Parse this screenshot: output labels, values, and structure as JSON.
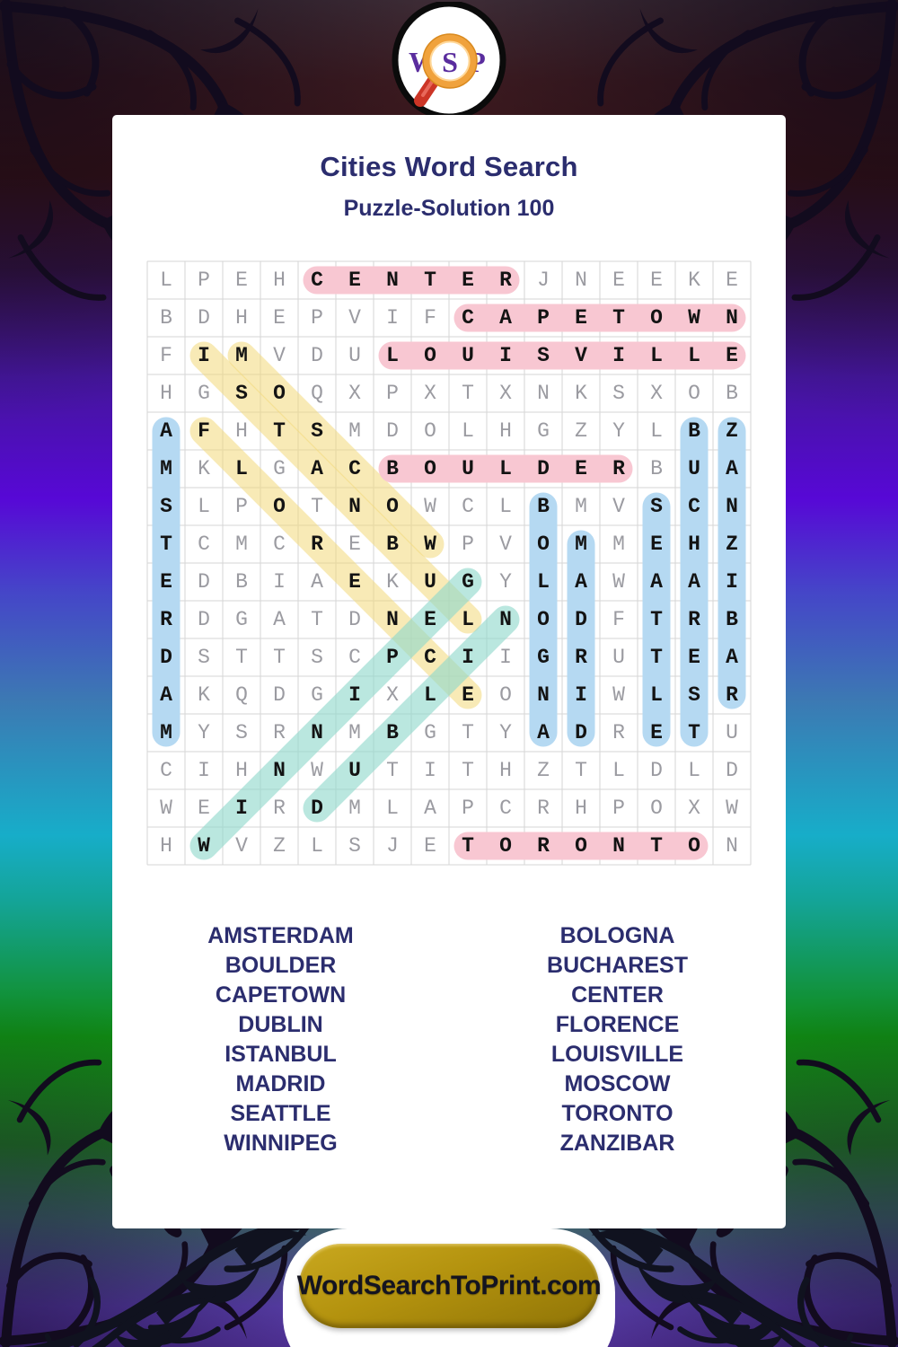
{
  "logo": {
    "letters": [
      "W",
      "S",
      "P"
    ]
  },
  "header": {
    "title": "Cities Word Search",
    "subtitle": "Puzzle-Solution 100"
  },
  "colors": {
    "pink": "#f8c7d2",
    "blue": "#b5d9f2",
    "yellow": "rgba(243,216,122,0.55)",
    "teal": "rgba(143,217,204,0.62)",
    "grid_line": "#d6d6d6",
    "letter_plain": "#9b9ba1",
    "letter_solution": "#131313",
    "navy": "#2b2d6e",
    "button_gold": "#b3920e",
    "logo_purple": "#5a2d9e",
    "logo_orange": "#f0a23c",
    "logo_red": "#cc3526"
  },
  "grid": {
    "rows": 16,
    "cols": 16,
    "letters": [
      "LPEHCENTERJNEEKE",
      "BDHEPVIFCAPETOWN",
      "FIMVDULOUISVILLE",
      "HGSOQXPXTXNKSXOB",
      "AFHTSMDOLHGZYLBZ",
      "MKLGACBOULDERBUA",
      "SLPOTNOWCLBMVSCN",
      "TCMCREBWPVOMMEHZ",
      "EDBIAEKUGYLAWAAI",
      "RDGATDNELNODFTRB",
      "DSTTSCPCIIGRUTEA",
      "AKQDGIXLEONIWLSR",
      "MYSRNMBGTYADRETU",
      "CIHNWUTITHZTLDLD",
      "WEIRDMLAPCRHPOXW",
      "HWVZLSJETORONTON"
    ]
  },
  "solutions": [
    {
      "word": "CENTER",
      "row": 1,
      "col": 5,
      "dir": "E",
      "color": "pink"
    },
    {
      "word": "CAPETOWN",
      "row": 2,
      "col": 9,
      "dir": "E",
      "color": "pink"
    },
    {
      "word": "LOUISVILLE",
      "row": 3,
      "col": 7,
      "dir": "E",
      "color": "pink"
    },
    {
      "word": "BOULDER",
      "row": 6,
      "col": 7,
      "dir": "E",
      "color": "pink"
    },
    {
      "word": "TORONTO",
      "row": 16,
      "col": 9,
      "dir": "E",
      "color": "pink"
    },
    {
      "word": "AMSTERDAM",
      "row": 5,
      "col": 1,
      "dir": "S",
      "color": "blue"
    },
    {
      "word": "BOLOGNA",
      "row": 7,
      "col": 11,
      "dir": "S",
      "color": "blue"
    },
    {
      "word": "MADRID",
      "row": 8,
      "col": 12,
      "dir": "S",
      "color": "blue"
    },
    {
      "word": "SEATTLE",
      "row": 7,
      "col": 14,
      "dir": "S",
      "color": "blue"
    },
    {
      "word": "BUCHAREST",
      "row": 5,
      "col": 15,
      "dir": "S",
      "color": "blue"
    },
    {
      "word": "ZANZIBAR",
      "row": 5,
      "col": 16,
      "dir": "S",
      "color": "blue"
    },
    {
      "word": "ISTANBUL",
      "row": 3,
      "col": 2,
      "dir": "SE",
      "color": "yellow"
    },
    {
      "word": "MOSCOW",
      "row": 3,
      "col": 3,
      "dir": "SE",
      "color": "yellow"
    },
    {
      "word": "FLORENCE",
      "row": 5,
      "col": 2,
      "dir": "SE",
      "color": "yellow"
    },
    {
      "word": "WINNIPEG",
      "row": 16,
      "col": 2,
      "dir": "NE",
      "color": "teal"
    },
    {
      "word": "DUBLIN",
      "row": 15,
      "col": 5,
      "dir": "NE",
      "color": "teal"
    }
  ],
  "word_lists": {
    "left": [
      "AMSTERDAM",
      "BOULDER",
      "CAPETOWN",
      "DUBLIN",
      "ISTANBUL",
      "MADRID",
      "SEATTLE",
      "WINNIPEG"
    ],
    "right": [
      "BOLOGNA",
      "BUCHAREST",
      "CENTER",
      "FLORENCE",
      "LOUISVILLE",
      "MOSCOW",
      "TORONTO",
      "ZANZIBAR"
    ]
  },
  "footer": {
    "site": "WordSearchToPrint.com"
  }
}
